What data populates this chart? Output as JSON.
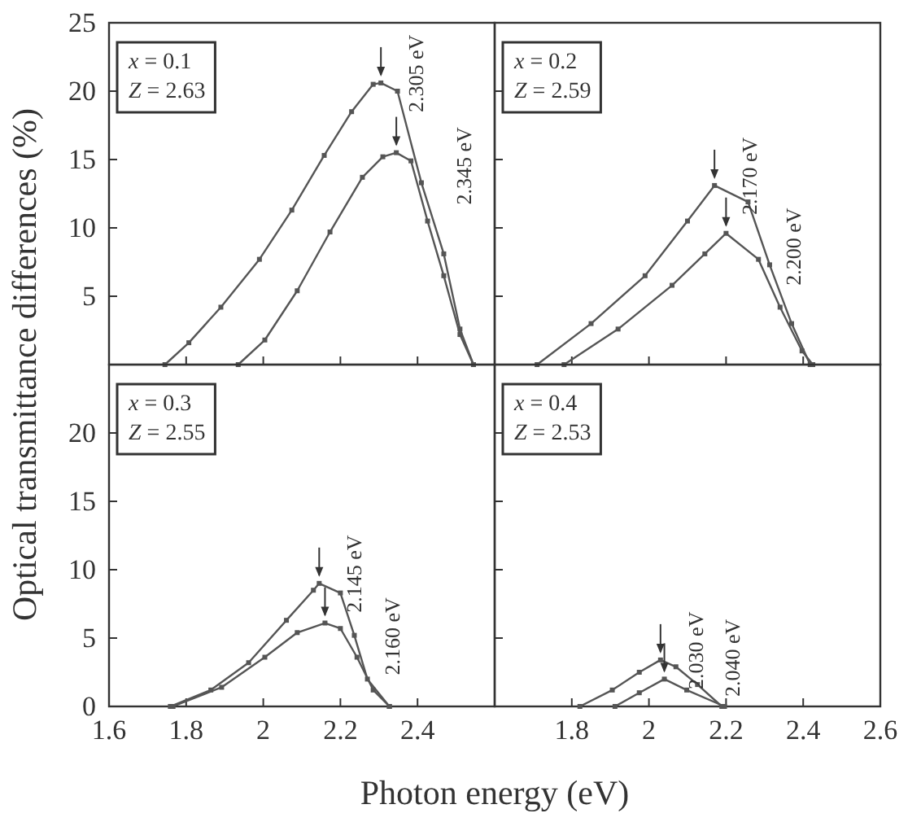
{
  "chart_data": [
    {
      "type": "line",
      "ylabel": "Optical transmittance differences (%)",
      "xlim": [
        1.6,
        2.6
      ],
      "ylim": [
        0,
        25
      ],
      "xticks": [
        1.6,
        1.8,
        2.0,
        2.2,
        2.4
      ],
      "yticks": [
        5,
        10,
        15,
        20,
        25
      ],
      "tick_labels": "y",
      "marker": "square",
      "line_style": "solid",
      "grid": false,
      "annotations": [
        "x = 0.1",
        "Z = 2.63",
        {
          "text": "2.305 eV",
          "x": 2.305,
          "y": 20.6
        },
        {
          "text": "2.345 eV",
          "x": 2.345,
          "y": 15.5
        }
      ],
      "series": [
        {
          "color": "#555555",
          "x": [
            1.745,
            1.807,
            1.89,
            1.99,
            2.074,
            2.158,
            2.229,
            2.285,
            2.305,
            2.348,
            2.41,
            2.468,
            2.51,
            2.545
          ],
          "values": [
            0,
            1.6,
            4.2,
            7.7,
            11.3,
            15.3,
            18.5,
            20.5,
            20.6,
            20,
            13.3,
            8.1,
            2.6,
            0
          ]
        },
        {
          "color": "#555555",
          "x": [
            1.935,
            2.004,
            2.088,
            2.173,
            2.257,
            2.31,
            2.345,
            2.383,
            2.426,
            2.468,
            2.51,
            2.545
          ],
          "values": [
            0,
            1.8,
            5.4,
            9.7,
            13.7,
            15.2,
            15.5,
            14.9,
            10.5,
            6.5,
            2.2,
            0
          ]
        }
      ]
    },
    {
      "type": "line",
      "xlim": [
        1.6,
        2.6
      ],
      "ylim": [
        0,
        25
      ],
      "xticks": [
        1.8,
        2.0,
        2.2,
        2.4
      ],
      "yticks": [
        5,
        10,
        15,
        20,
        25
      ],
      "tick_labels": false,
      "marker": "square",
      "line_style": "solid",
      "grid": false,
      "annotations": [
        "x = 0.2",
        "Z = 2.59",
        {
          "text": "2.170 eV",
          "x": 2.17,
          "y": 13.1
        },
        {
          "text": "2.200 eV",
          "x": 2.2,
          "y": 9.6
        }
      ],
      "series": [
        {
          "color": "#555555",
          "x": [
            1.71,
            1.85,
            1.99,
            2.1,
            2.17,
            2.257,
            2.313,
            2.37,
            2.418
          ],
          "values": [
            0,
            3,
            6.5,
            10.5,
            13.1,
            11.9,
            7.3,
            3,
            0
          ]
        },
        {
          "color": "#555555",
          "x": [
            1.78,
            1.92,
            2.06,
            2.145,
            2.2,
            2.284,
            2.34,
            2.397,
            2.425
          ],
          "values": [
            0,
            2.6,
            5.8,
            8.1,
            9.6,
            7.7,
            4.2,
            1,
            0
          ]
        }
      ]
    },
    {
      "type": "line",
      "xlabel": "Photon energy (eV)",
      "xlim": [
        1.6,
        2.6
      ],
      "ylim": [
        0,
        25
      ],
      "xticks": [
        1.6,
        1.8,
        2.0,
        2.2,
        2.4
      ],
      "yticks": [
        0,
        5,
        10,
        15,
        20
      ],
      "marker": "square",
      "line_style": "solid",
      "grid": false,
      "annotations": [
        "x = 0.3",
        "Z = 2.55",
        {
          "text": "2.145 eV",
          "x": 2.145,
          "y": 9
        },
        {
          "text": "2.160 eV",
          "x": 2.16,
          "y": 6.1
        }
      ],
      "series": [
        {
          "color": "#555555",
          "x": [
            1.759,
            1.864,
            1.962,
            2.06,
            2.13,
            2.145,
            2.2,
            2.236,
            2.27,
            2.327
          ],
          "values": [
            0,
            1.2,
            3.2,
            6.3,
            8.5,
            9,
            8.3,
            5.2,
            2,
            0
          ]
        },
        {
          "color": "#555555",
          "x": [
            1.766,
            1.892,
            2.004,
            2.088,
            2.16,
            2.2,
            2.243,
            2.285,
            2.327
          ],
          "values": [
            0,
            1.4,
            3.6,
            5.4,
            6.1,
            5.7,
            3.6,
            1.2,
            0
          ]
        }
      ]
    },
    {
      "type": "line",
      "xlim": [
        1.6,
        2.6
      ],
      "ylim": [
        0,
        25
      ],
      "xticks": [
        1.8,
        2.0,
        2.2,
        2.4,
        2.6
      ],
      "yticks": [
        0,
        5,
        10,
        15,
        20
      ],
      "tick_labels": "x",
      "marker": "square",
      "line_style": "solid",
      "grid": false,
      "annotations": [
        "x = 0.4",
        "Z = 2.53",
        {
          "text": "2.030 eV",
          "x": 2.03,
          "y": 3.4
        },
        {
          "text": "2.040 eV",
          "x": 2.04,
          "y": 2
        }
      ],
      "series": [
        {
          "color": "#555555",
          "x": [
            1.821,
            1.905,
            1.975,
            2.03,
            2.07,
            2.126,
            2.189
          ],
          "values": [
            0,
            1.2,
            2.5,
            3.4,
            2.9,
            1.6,
            0
          ]
        },
        {
          "color": "#555555",
          "x": [
            1.912,
            1.975,
            2.04,
            2.098,
            2.196
          ],
          "values": [
            0,
            1,
            2,
            1.2,
            0
          ]
        }
      ]
    }
  ]
}
